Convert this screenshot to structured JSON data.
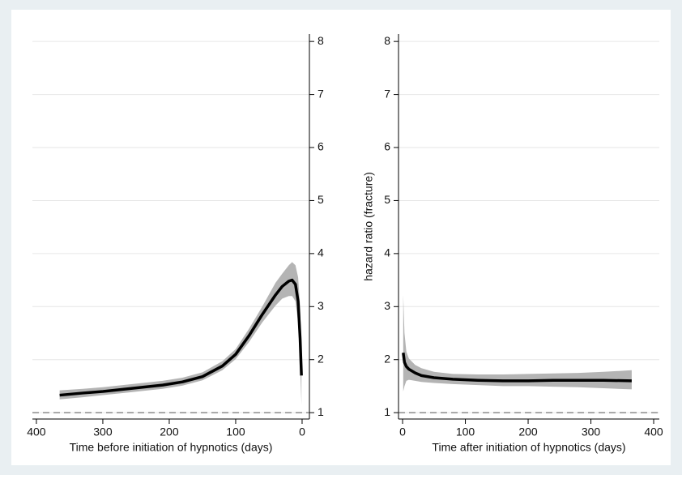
{
  "chart_data": [
    {
      "type": "line",
      "x_label": "Time before initiation of hypnotics (days)",
      "x": [
        365,
        330,
        300,
        270,
        240,
        210,
        180,
        150,
        120,
        100,
        80,
        60,
        40,
        30,
        20,
        15,
        10,
        6,
        3,
        1
      ],
      "values": [
        1.33,
        1.37,
        1.4,
        1.44,
        1.48,
        1.52,
        1.58,
        1.68,
        1.88,
        2.1,
        2.45,
        2.85,
        3.22,
        3.38,
        3.48,
        3.5,
        3.42,
        3.1,
        2.4,
        1.7
      ],
      "lower": [
        1.25,
        1.29,
        1.33,
        1.37,
        1.41,
        1.45,
        1.51,
        1.61,
        1.8,
        2.01,
        2.33,
        2.7,
        3.02,
        3.15,
        3.2,
        3.2,
        3.1,
        2.7,
        1.9,
        1.15
      ],
      "upper": [
        1.42,
        1.45,
        1.48,
        1.52,
        1.56,
        1.6,
        1.66,
        1.76,
        1.97,
        2.2,
        2.58,
        3.0,
        3.45,
        3.62,
        3.78,
        3.84,
        3.78,
        3.55,
        3.0,
        2.2
      ],
      "color": "#000000",
      "band_color": "#b4b4b4",
      "reference_line": 1,
      "xlim": [
        406,
        -11
      ],
      "xticks": [
        400,
        300,
        200,
        100,
        0
      ],
      "ylim": [
        0.88,
        8.14
      ],
      "yticks": [
        1,
        2,
        3,
        4,
        5,
        6,
        7,
        8
      ],
      "y_axis_side": "right",
      "grid": true
    },
    {
      "type": "line",
      "x_label": "Time after initiation of hypnotics (days)",
      "y_label": "hazard ratio (fracture)",
      "x": [
        1,
        3,
        6,
        10,
        20,
        30,
        50,
        80,
        120,
        160,
        200,
        240,
        280,
        320,
        365
      ],
      "values": [
        2.13,
        1.95,
        1.87,
        1.82,
        1.75,
        1.7,
        1.66,
        1.63,
        1.61,
        1.6,
        1.6,
        1.61,
        1.61,
        1.61,
        1.6
      ],
      "lower": [
        1.4,
        1.5,
        1.6,
        1.62,
        1.6,
        1.58,
        1.56,
        1.54,
        1.52,
        1.5,
        1.5,
        1.49,
        1.48,
        1.46,
        1.44
      ],
      "upper": [
        3.22,
        2.5,
        2.15,
        2.02,
        1.9,
        1.84,
        1.77,
        1.73,
        1.72,
        1.72,
        1.73,
        1.74,
        1.75,
        1.77,
        1.8
      ],
      "color": "#000000",
      "band_color": "#b4b4b4",
      "reference_line": 1,
      "xlim": [
        -6.5,
        409
      ],
      "xticks": [
        0,
        100,
        200,
        300,
        400
      ],
      "ylim": [
        0.88,
        8.14
      ],
      "yticks": [
        1,
        2,
        3,
        4,
        5,
        6,
        7,
        8
      ],
      "y_axis_side": "left",
      "grid": true
    }
  ]
}
